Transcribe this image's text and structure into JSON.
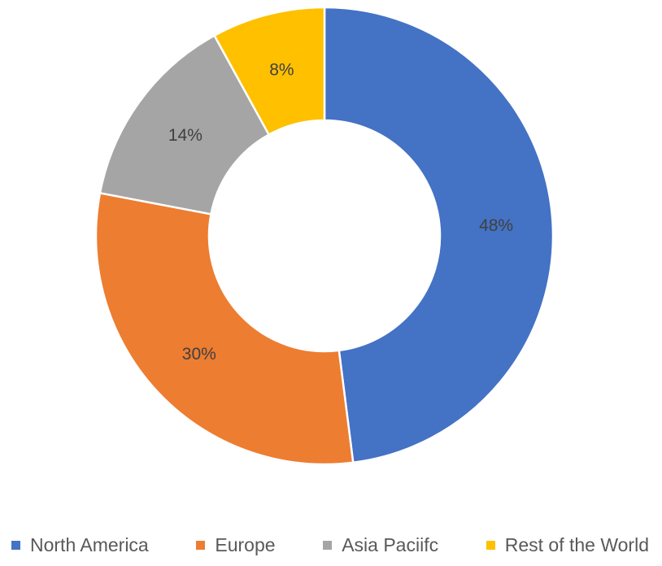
{
  "chart_data": {
    "type": "pie",
    "subtype": "donut",
    "title": "",
    "start_angle_deg": 0,
    "direction": "clockwise",
    "total": 100,
    "slices": [
      {
        "label": "North America",
        "value": 48,
        "display": "48%",
        "color": "#4472C4"
      },
      {
        "label": "Europe",
        "value": 30,
        "display": "30%",
        "color": "#ED7D31"
      },
      {
        "label": "Asia Paciifc",
        "value": 14,
        "display": "14%",
        "color": "#A5A5A5"
      },
      {
        "label": "Rest of the World",
        "value": 8,
        "display": "8%",
        "color": "#FFC000"
      }
    ],
    "label_color": "#404040",
    "slice_border_color": "#FFFFFF",
    "legend_position": "bottom",
    "legend_text_color": "#595959",
    "background_color": "#FFFFFF"
  }
}
